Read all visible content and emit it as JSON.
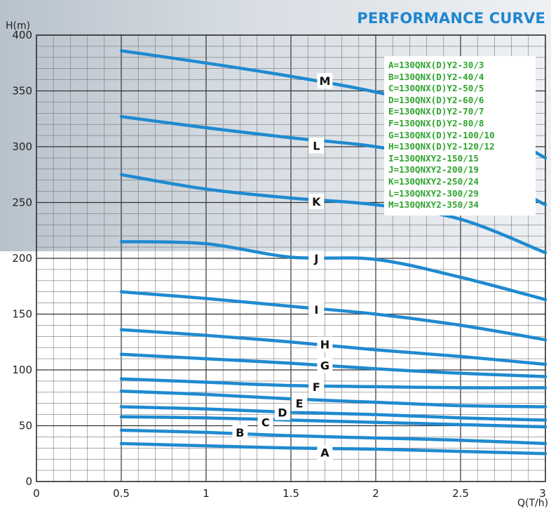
{
  "chart_data": {
    "type": "line",
    "title": "PERFORMANCE CURVE",
    "xlabel": "Q(T/h)",
    "ylabel": "H(m)",
    "xlim": [
      0,
      3
    ],
    "ylim": [
      0,
      400
    ],
    "grid": true,
    "legend_position": "top-right",
    "x_ticks": [
      "0",
      "0.5",
      "1",
      "1.5",
      "2",
      "2.5",
      "3"
    ],
    "y_ticks": [
      "0",
      "50",
      "100",
      "150",
      "200",
      "250",
      "300",
      "350",
      "400"
    ],
    "legend": [
      "A=130QNX(D)Y2-30/3",
      "B=130QNX(D)Y2-40/4",
      "C=130QNX(D)Y2-50/5",
      "D=130QNX(D)Y2-60/6",
      "E=130QNX(D)Y2-70/7",
      "F=130QNX(D)Y2-80/8",
      "G=130QNX(D)Y2-100/10",
      "H=130QNX(D)Y2-120/12",
      "I=130QNXY2-150/15",
      "J=130QNXY2-200/19",
      "K=130QNXY2-250/24",
      "L=130QNXY2-300/29",
      "M=130QNXY2-350/34"
    ],
    "line_color": "#1f8ad0",
    "series": [
      {
        "name": "A",
        "label_at": [
          1.7,
          26
        ],
        "points": [
          [
            0.5,
            34
          ],
          [
            1.0,
            32
          ],
          [
            1.5,
            30
          ],
          [
            2.0,
            29
          ],
          [
            2.5,
            27
          ],
          [
            3.0,
            25
          ]
        ]
      },
      {
        "name": "B",
        "label_at": [
          1.2,
          44
        ],
        "points": [
          [
            0.5,
            46
          ],
          [
            1.0,
            44
          ],
          [
            1.5,
            41
          ],
          [
            2.0,
            39
          ],
          [
            2.5,
            37
          ],
          [
            3.0,
            34
          ]
        ]
      },
      {
        "name": "C",
        "label_at": [
          1.35,
          53
        ],
        "points": [
          [
            0.5,
            58
          ],
          [
            1.0,
            57
          ],
          [
            1.5,
            55
          ],
          [
            2.0,
            53
          ],
          [
            2.5,
            51
          ],
          [
            3.0,
            49
          ]
        ]
      },
      {
        "name": "D",
        "label_at": [
          1.45,
          62
        ],
        "points": [
          [
            0.5,
            67
          ],
          [
            1.0,
            65
          ],
          [
            1.5,
            62
          ],
          [
            2.0,
            60
          ],
          [
            2.5,
            57
          ],
          [
            3.0,
            55
          ]
        ]
      },
      {
        "name": "E",
        "label_at": [
          1.55,
          70
        ],
        "points": [
          [
            0.5,
            81
          ],
          [
            1.0,
            78
          ],
          [
            1.5,
            74
          ],
          [
            2.0,
            71
          ],
          [
            2.5,
            68
          ],
          [
            3.0,
            67
          ]
        ]
      },
      {
        "name": "F",
        "label_at": [
          1.65,
          85
        ],
        "points": [
          [
            0.5,
            92
          ],
          [
            1.0,
            89
          ],
          [
            1.5,
            86
          ],
          [
            2.0,
            85
          ],
          [
            2.5,
            84
          ],
          [
            3.0,
            84
          ]
        ]
      },
      {
        "name": "G",
        "label_at": [
          1.7,
          104
        ],
        "points": [
          [
            0.5,
            114
          ],
          [
            1.0,
            110
          ],
          [
            1.5,
            106
          ],
          [
            2.0,
            101
          ],
          [
            2.5,
            97
          ],
          [
            3.0,
            94
          ]
        ]
      },
      {
        "name": "H",
        "label_at": [
          1.7,
          123
        ],
        "points": [
          [
            0.5,
            136
          ],
          [
            1.0,
            131
          ],
          [
            1.5,
            125
          ],
          [
            2.0,
            118
          ],
          [
            2.5,
            112
          ],
          [
            3.0,
            105
          ]
        ]
      },
      {
        "name": "I",
        "label_at": [
          1.65,
          154
        ],
        "points": [
          [
            0.5,
            170
          ],
          [
            1.0,
            164
          ],
          [
            1.5,
            157
          ],
          [
            2.0,
            150
          ],
          [
            2.5,
            140
          ],
          [
            3.0,
            127
          ]
        ]
      },
      {
        "name": "J",
        "label_at": [
          1.65,
          200
        ],
        "points": [
          [
            0.5,
            215
          ],
          [
            1.0,
            213
          ],
          [
            1.5,
            201
          ],
          [
            2.0,
            199
          ],
          [
            2.5,
            183
          ],
          [
            3.0,
            163
          ]
        ]
      },
      {
        "name": "K",
        "label_at": [
          1.65,
          251
        ],
        "points": [
          [
            0.5,
            275
          ],
          [
            1.0,
            262
          ],
          [
            1.5,
            254
          ],
          [
            2.0,
            248
          ],
          [
            2.5,
            235
          ],
          [
            3.0,
            205
          ]
        ]
      },
      {
        "name": "L",
        "label_at": [
          1.65,
          301
        ],
        "points": [
          [
            0.5,
            327
          ],
          [
            1.0,
            317
          ],
          [
            1.5,
            308
          ],
          [
            2.0,
            300
          ],
          [
            2.5,
            285
          ],
          [
            3.0,
            248
          ]
        ]
      },
      {
        "name": "M",
        "label_at": [
          1.7,
          359
        ],
        "points": [
          [
            0.5,
            386
          ],
          [
            1.0,
            375
          ],
          [
            1.5,
            363
          ],
          [
            2.0,
            349
          ],
          [
            2.5,
            330
          ],
          [
            3.0,
            290
          ]
        ]
      }
    ]
  }
}
